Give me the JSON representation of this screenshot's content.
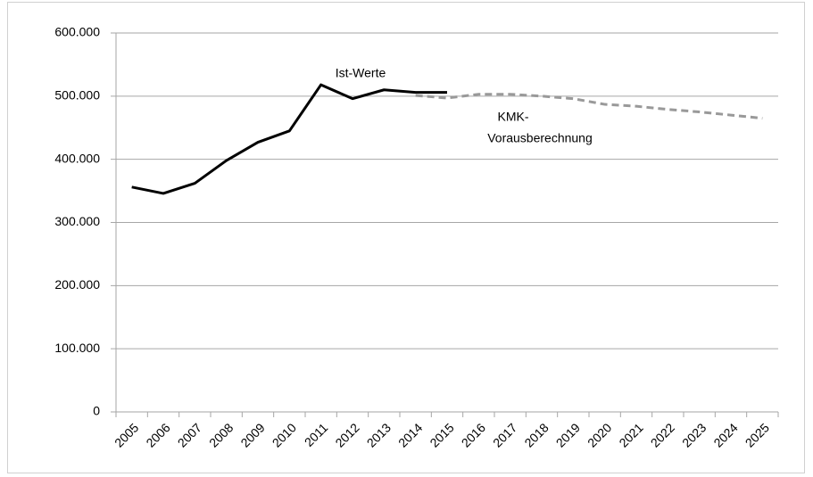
{
  "chart_data": {
    "type": "line",
    "categories": [
      "2005",
      "2006",
      "2007",
      "2008",
      "2009",
      "2010",
      "2011",
      "2012",
      "2013",
      "2014",
      "2015",
      "2016",
      "2017",
      "2018",
      "2019",
      "2020",
      "2021",
      "2022",
      "2023",
      "2024",
      "2025"
    ],
    "series": [
      {
        "name": "Ist-Werte",
        "color": "#000000",
        "dash": false,
        "values": [
          356000,
          346000,
          362000,
          398000,
          427000,
          445000,
          518000,
          496000,
          510000,
          506000,
          506000,
          null,
          null,
          null,
          null,
          null,
          null,
          null,
          null,
          null,
          null
        ]
      },
      {
        "name_lines": [
          "KMK-",
          "Vorausberechnung"
        ],
        "color": "#999999",
        "dash": true,
        "values": [
          null,
          null,
          null,
          null,
          null,
          null,
          null,
          null,
          null,
          501000,
          497000,
          503000,
          503000,
          500000,
          496000,
          487000,
          484000,
          479000,
          475000,
          470000,
          465000
        ]
      }
    ],
    "ylim": [
      0,
      600000
    ],
    "yticks": [
      0,
      {
        "value": 100000,
        "label": "100.000"
      },
      {
        "value": 200000,
        "label": "200.000"
      },
      {
        "value": 300000,
        "label": "300.000"
      },
      {
        "value": 400000,
        "label": "400.000"
      },
      {
        "value": 500000,
        "label": "500.000"
      },
      {
        "value": 600000,
        "label": "600.000"
      }
    ],
    "grid": true
  }
}
